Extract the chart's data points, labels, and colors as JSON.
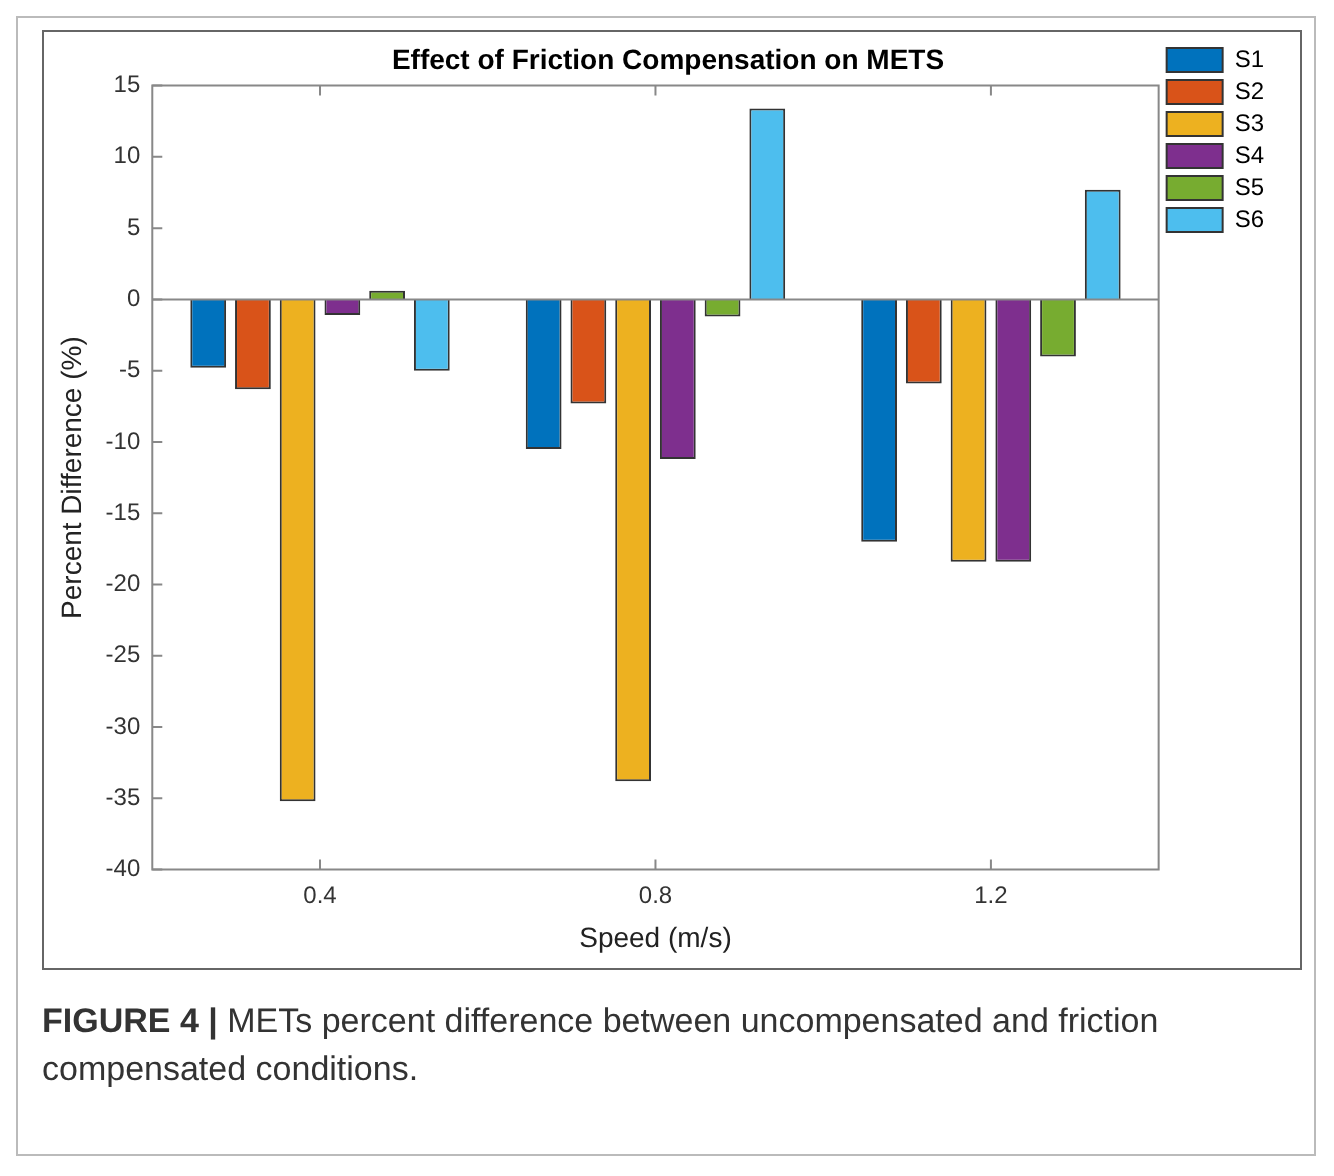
{
  "chart_data": {
    "type": "bar",
    "title": "Effect of Friction Compensation on METS",
    "xlabel": "Speed (m/s)",
    "ylabel": "Percent Difference (%)",
    "categories": [
      "0.4",
      "0.8",
      "1.2"
    ],
    "series": [
      {
        "name": "S1",
        "color": "#0072bd",
        "values": [
          -4.8,
          -10.5,
          -17.0
        ]
      },
      {
        "name": "S2",
        "color": "#d95319",
        "values": [
          -6.3,
          -7.3,
          -5.9
        ]
      },
      {
        "name": "S3",
        "color": "#edb120",
        "values": [
          -35.2,
          -33.8,
          -18.4
        ]
      },
      {
        "name": "S4",
        "color": "#7e2f8e",
        "values": [
          -1.1,
          -11.2,
          -18.4
        ]
      },
      {
        "name": "S5",
        "color": "#77ac30",
        "values": [
          0.6,
          -1.2,
          -4.0
        ]
      },
      {
        "name": "S6",
        "color": "#4dbeee",
        "values": [
          -5.0,
          13.4,
          7.7
        ]
      }
    ],
    "ylim": [
      -40,
      15
    ],
    "yticks": [
      -40,
      -35,
      -30,
      -25,
      -20,
      -15,
      -10,
      -5,
      0,
      5,
      10,
      15
    ],
    "grid": false,
    "ref_lines": [
      {
        "axis": "y",
        "value": 0,
        "color": "#888888"
      }
    ],
    "legend": "top right",
    "annotations": [
      "FIGURE 4 | METs percent difference between uncompensated and friction compensated conditions."
    ]
  }
}
